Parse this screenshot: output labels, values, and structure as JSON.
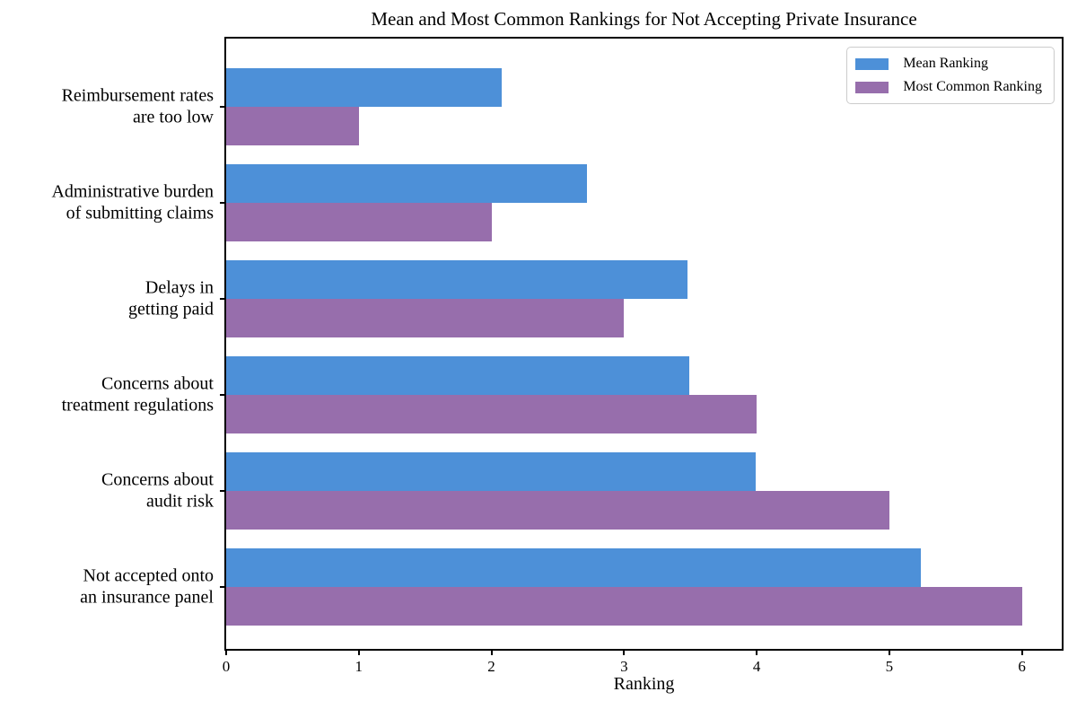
{
  "title": "Mean and Most Common Rankings for Not Accepting Private Insurance",
  "chart_data": {
    "type": "bar",
    "orientation": "horizontal",
    "title": "Mean and Most Common Rankings for Not Accepting Private Insurance",
    "xlabel": "Ranking",
    "ylabel": "",
    "categories": [
      "Reimbursement rates\nare too low",
      "Administrative burden\nof submitting claims",
      "Delays in\ngetting paid",
      "Concerns about\ntreatment regulations",
      "Concerns about\naudit risk",
      "Not accepted onto\nan insurance panel"
    ],
    "series": [
      {
        "name": "Mean Ranking",
        "color": "#4d90d8",
        "values": [
          2.08,
          2.72,
          3.48,
          3.49,
          3.99,
          5.24
        ]
      },
      {
        "name": "Most Common Ranking",
        "color": "#976eac",
        "values": [
          1,
          2,
          3,
          4,
          5,
          6
        ]
      }
    ],
    "xlim": [
      0,
      6.3
    ],
    "xticks": [
      0,
      1,
      2,
      3,
      4,
      5,
      6
    ],
    "legend_position": "upper right",
    "grid": false,
    "colors": {
      "spine": "#000000",
      "background": "#ffffff",
      "legend_border": "#cccccc"
    }
  }
}
